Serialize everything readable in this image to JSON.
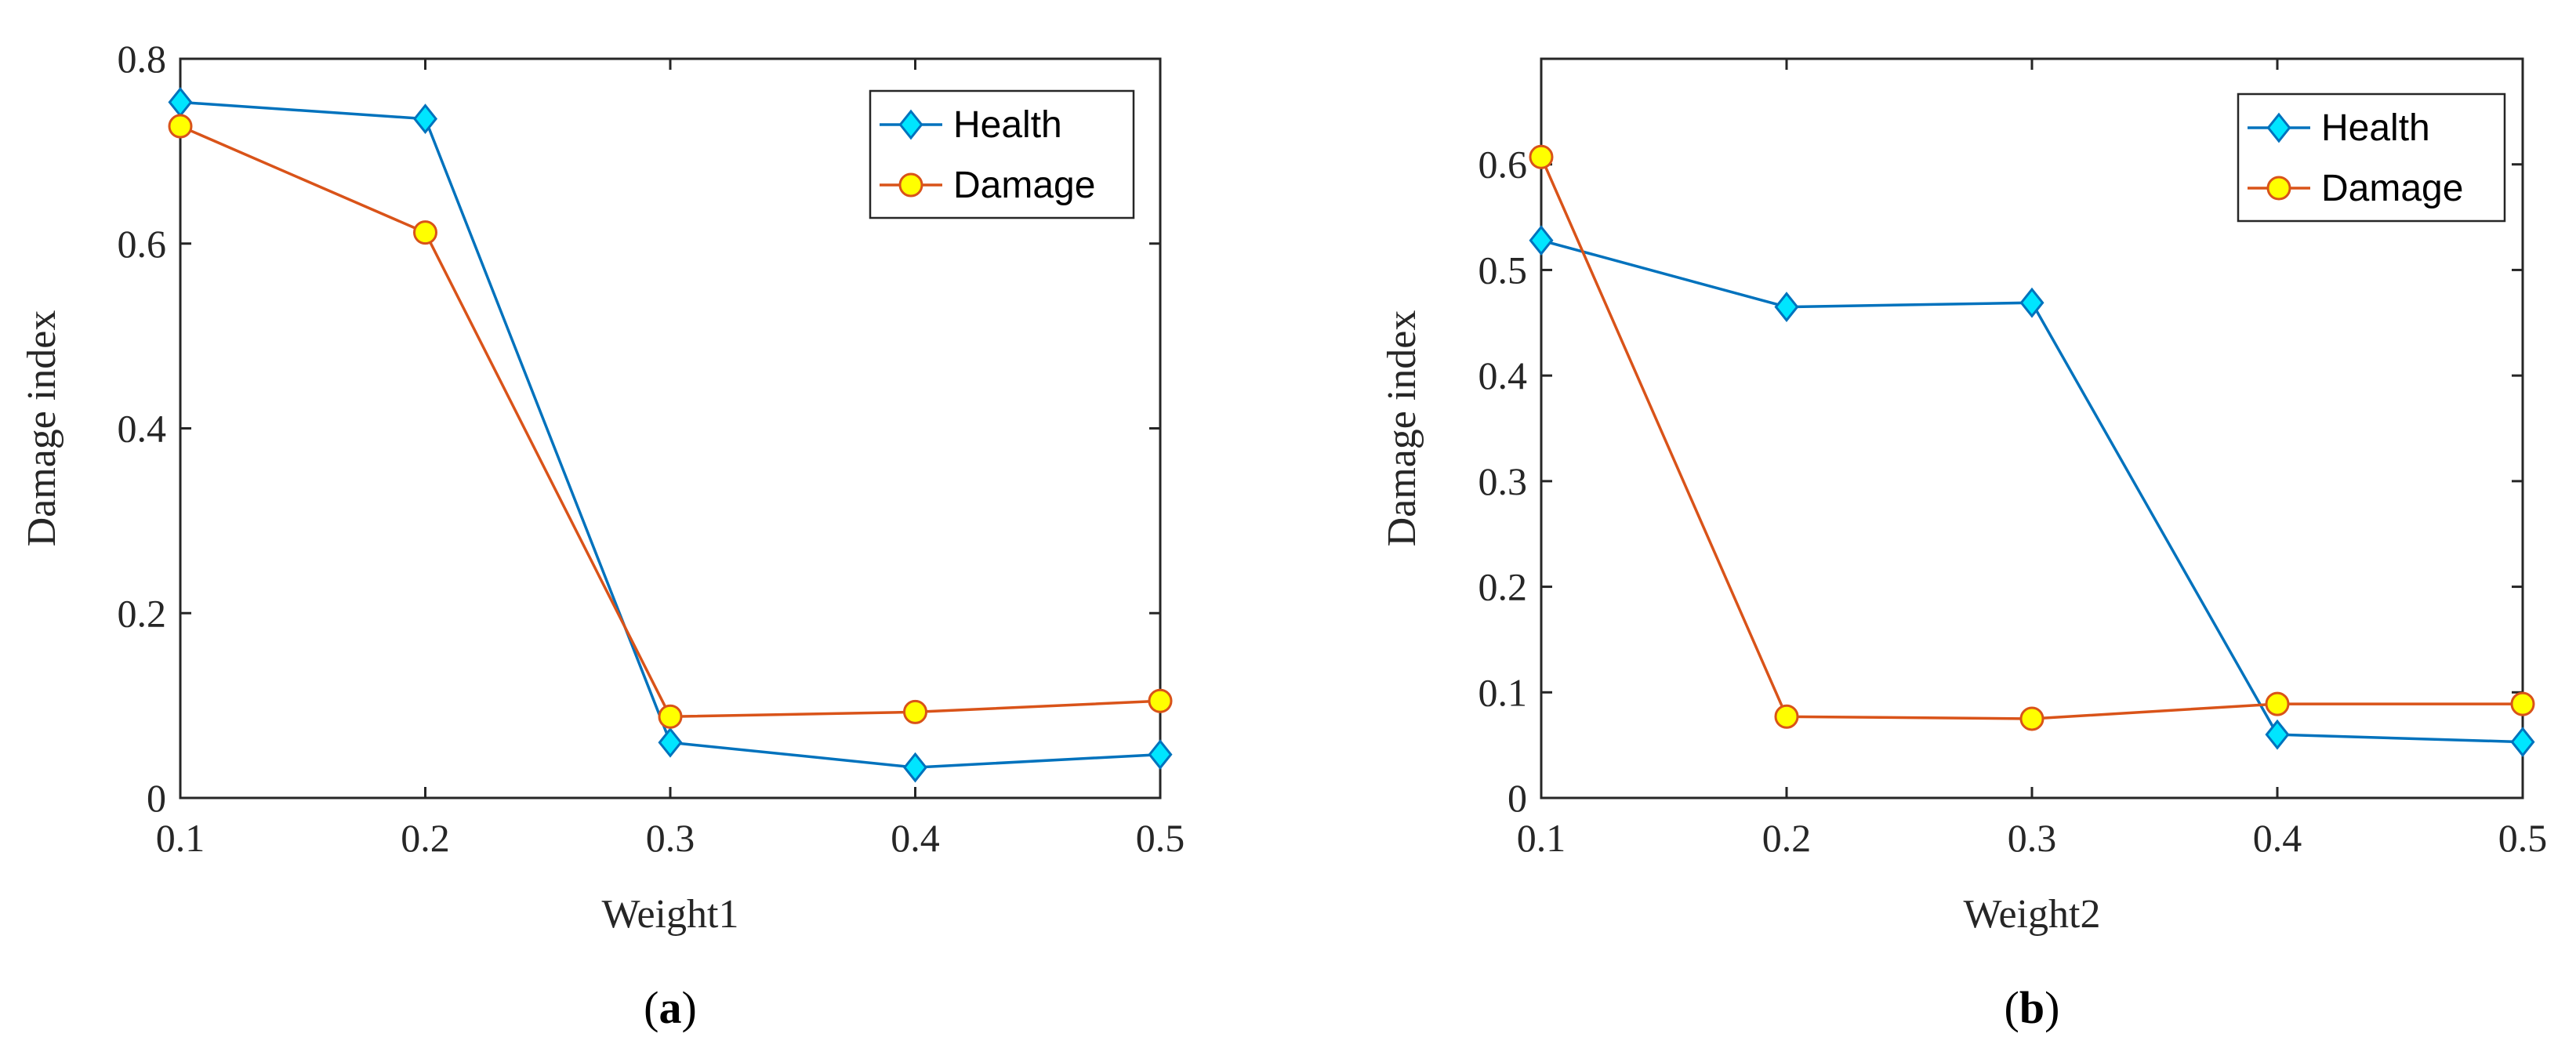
{
  "colors": {
    "health_line": "#0072bd",
    "health_marker_fill": "#00e5ff",
    "damage_line": "#d95319",
    "damage_marker_fill": "#ffff00",
    "damage_marker_stroke": "#d95319",
    "axis": "#262626"
  },
  "chart_data": [
    {
      "type": "line",
      "panel": "(a)",
      "panel_letter": "a",
      "xlabel": "Weight1",
      "ylabel": "Damage index",
      "x": [
        0.1,
        0.2,
        0.3,
        0.4,
        0.5
      ],
      "xlim": [
        0.1,
        0.5
      ],
      "ylim": [
        0,
        0.8
      ],
      "xticks": [
        "0.1",
        "0.2",
        "0.3",
        "0.4",
        "0.5"
      ],
      "xtick_values": [
        0.1,
        0.2,
        0.3,
        0.4,
        0.5
      ],
      "yticks": [
        "0",
        "0.2",
        "0.4",
        "0.6",
        "0.8"
      ],
      "ytick_values": [
        0,
        0.2,
        0.4,
        0.6,
        0.8
      ],
      "grid": false,
      "legend_position": "top-right",
      "series": [
        {
          "name": "Health",
          "marker": "diamond",
          "values": [
            0.753,
            0.735,
            0.06,
            0.033,
            0.047
          ]
        },
        {
          "name": "Damage",
          "marker": "circle",
          "values": [
            0.727,
            0.612,
            0.088,
            0.093,
            0.105
          ]
        }
      ]
    },
    {
      "type": "line",
      "panel": "(b)",
      "panel_letter": "b",
      "xlabel": "Weight2",
      "ylabel": "Damage index",
      "x": [
        0.1,
        0.2,
        0.3,
        0.4,
        0.5
      ],
      "xlim": [
        0.1,
        0.5
      ],
      "ylim": [
        0,
        0.7
      ],
      "xticks": [
        "0.1",
        "0.2",
        "0.3",
        "0.4",
        "0.5"
      ],
      "xtick_values": [
        0.1,
        0.2,
        0.3,
        0.4,
        0.5
      ],
      "yticks": [
        "0",
        "0.1",
        "0.2",
        "0.3",
        "0.4",
        "0.5",
        "0.6"
      ],
      "ytick_values": [
        0,
        0.1,
        0.2,
        0.3,
        0.4,
        0.5,
        0.6
      ],
      "grid": false,
      "legend_position": "top-right",
      "series": [
        {
          "name": "Health",
          "marker": "diamond",
          "values": [
            0.528,
            0.465,
            0.469,
            0.06,
            0.053
          ]
        },
        {
          "name": "Damage",
          "marker": "circle",
          "values": [
            0.607,
            0.077,
            0.075,
            0.089,
            0.089
          ]
        }
      ]
    }
  ]
}
